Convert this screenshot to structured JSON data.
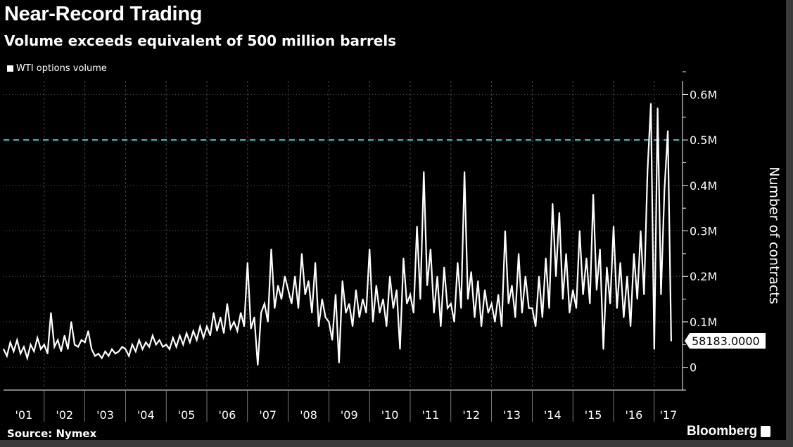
{
  "header": {
    "title": "Near-Record Trading",
    "subtitle": "Volume exceeds equivalent of 500 million barrels"
  },
  "footer": {
    "source": "Source: Nymex",
    "brand": "Bloomberg"
  },
  "chart_data": {
    "type": "line",
    "title": "Near-Record Trading",
    "subtitle": "Volume exceeds equivalent of 500 million barrels",
    "ylabel": "Number of contracts",
    "xlabel": "",
    "legend": {
      "entries": [
        "WTI options volume"
      ],
      "placement": "top-left"
    },
    "series_color": "#ffffff",
    "reference_line": {
      "value": 500000,
      "color": "#3cc8c8",
      "style": "dashed"
    },
    "last_value_label": "58183.0000",
    "last_value": 58183,
    "y_axis_side": "right",
    "ylim": [
      -50000,
      630000
    ],
    "y_ticks": [
      0,
      100000,
      200000,
      300000,
      400000,
      500000,
      600000
    ],
    "y_tick_labels": [
      "0",
      "0.1M",
      "0.2M",
      "0.3M",
      "0.4M",
      "0.5M",
      "0.6M"
    ],
    "x_ticks": [
      "'01",
      "'02",
      "'03",
      "'04",
      "'05",
      "'06",
      "'07",
      "'08",
      "'09",
      "'10",
      "'11",
      "'12",
      "'13",
      "'14",
      "'15",
      "'16",
      "'17"
    ],
    "xlim": [
      2001,
      2017.7
    ],
    "grid": true,
    "x_start": 2001,
    "x_step_months": 1,
    "series": [
      {
        "name": "WTI options volume",
        "values": [
          40000,
          25000,
          55000,
          35000,
          60000,
          30000,
          45000,
          20000,
          50000,
          35000,
          65000,
          40000,
          50000,
          30000,
          120000,
          45000,
          60000,
          35000,
          70000,
          40000,
          100000,
          50000,
          45000,
          60000,
          55000,
          80000,
          40000,
          25000,
          30000,
          20000,
          35000,
          25000,
          40000,
          30000,
          35000,
          45000,
          40000,
          25000,
          50000,
          35000,
          60000,
          40000,
          55000,
          45000,
          70000,
          50000,
          60000,
          45000,
          50000,
          40000,
          65000,
          45000,
          70000,
          50000,
          75000,
          55000,
          80000,
          60000,
          90000,
          65000,
          90000,
          70000,
          120000,
          80000,
          110000,
          75000,
          140000,
          85000,
          100000,
          80000,
          120000,
          90000,
          230000,
          85000,
          110000,
          5000,
          120000,
          140000,
          100000,
          260000,
          130000,
          180000,
          150000,
          200000,
          170000,
          140000,
          200000,
          130000,
          250000,
          160000,
          190000,
          120000,
          230000,
          90000,
          150000,
          110000,
          100000,
          60000,
          160000,
          10000,
          190000,
          120000,
          140000,
          90000,
          170000,
          110000,
          150000,
          120000,
          260000,
          100000,
          180000,
          120000,
          150000,
          90000,
          200000,
          130000,
          170000,
          40000,
          240000,
          140000,
          160000,
          120000,
          310000,
          150000,
          430000,
          180000,
          260000,
          120000,
          200000,
          90000,
          220000,
          130000,
          140000,
          100000,
          230000,
          130000,
          430000,
          150000,
          210000,
          110000,
          190000,
          90000,
          170000,
          120000,
          140000,
          100000,
          160000,
          90000,
          300000,
          140000,
          180000,
          110000,
          250000,
          120000,
          200000,
          130000,
          130000,
          90000,
          200000,
          110000,
          240000,
          130000,
          360000,
          200000,
          340000,
          150000,
          250000,
          120000,
          170000,
          130000,
          300000,
          160000,
          240000,
          140000,
          380000,
          170000,
          260000,
          40000,
          220000,
          140000,
          310000,
          130000,
          230000,
          110000,
          200000,
          90000,
          250000,
          150000,
          300000,
          160000,
          430000,
          580000,
          40000,
          570000,
          160000,
          390000,
          520000,
          58183
        ]
      }
    ]
  }
}
